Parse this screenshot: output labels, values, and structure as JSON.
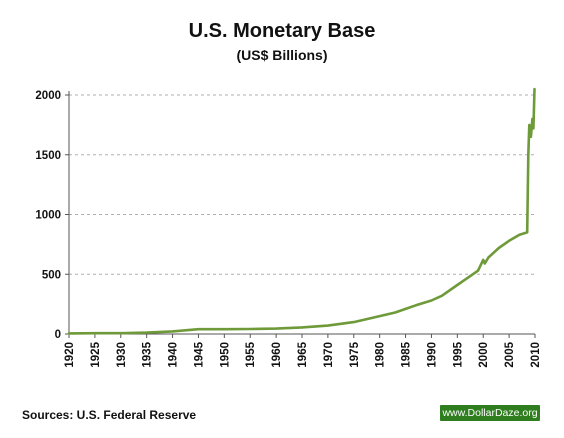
{
  "title": "U.S. Monetary Base",
  "subtitle": "(US$ Billions)",
  "source": "Sources: U.S. Federal Reserve",
  "badge": "www.DollarDaze.org",
  "colors": {
    "line": "#6f9a3a",
    "grid": "#b0b0b0",
    "axis": "#555555",
    "badge_bg": "#2e7d1f"
  },
  "chart_data": {
    "type": "line",
    "title": "U.S. Monetary Base",
    "subtitle": "(US$ Billions)",
    "xlabel": "",
    "ylabel": "",
    "xlim": [
      1920,
      2010
    ],
    "ylim": [
      0,
      2000
    ],
    "x_ticks": [
      1920,
      1925,
      1930,
      1935,
      1940,
      1945,
      1950,
      1955,
      1960,
      1965,
      1970,
      1975,
      1980,
      1985,
      1990,
      1995,
      2000,
      2005,
      2010
    ],
    "y_ticks": [
      0,
      500,
      1000,
      1500,
      2000
    ],
    "grid": "horizontal dashed",
    "legend": "none",
    "series": [
      {
        "x": [
          1920,
          1925,
          1930,
          1935,
          1940,
          1945,
          1950,
          1955,
          1960,
          1965,
          1970,
          1975,
          1980,
          1983,
          1985,
          1987,
          1990,
          1992,
          1995,
          1997,
          1999,
          2000,
          2000.3,
          2001,
          2003,
          2005,
          2007,
          2008.5,
          2008.7,
          2008.9,
          2009.2,
          2009.5,
          2009.7,
          2009.9
        ],
        "y": [
          5,
          7,
          7,
          12,
          22,
          40,
          40,
          42,
          45,
          55,
          70,
          100,
          150,
          180,
          210,
          240,
          280,
          320,
          410,
          470,
          530,
          620,
          590,
          640,
          720,
          780,
          830,
          850,
          1500,
          1750,
          1650,
          1800,
          1720,
          2050
        ]
      }
    ]
  }
}
